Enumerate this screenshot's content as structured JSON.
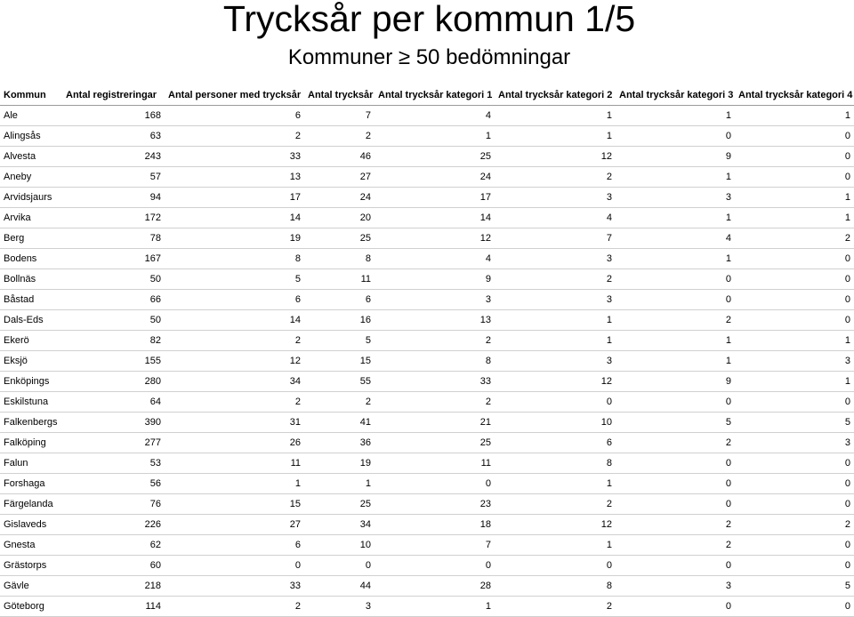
{
  "title": "Trycksår per kommun 1/5",
  "subtitle": "Kommuner ≥ 50 bedömningar",
  "table": {
    "headers": [
      "Kommun",
      "Antal registreringar",
      "Antal personer med trycksår",
      "Antal trycksår",
      "Antal trycksår kategori 1",
      "Antal trycksår kategori 2",
      "Antal trycksår kategori 3",
      "Antal trycksår kategori 4"
    ],
    "rows": [
      [
        "Ale",
        "168",
        "6",
        "7",
        "4",
        "1",
        "1",
        "1"
      ],
      [
        "Alingsås",
        "63",
        "2",
        "2",
        "1",
        "1",
        "0",
        "0"
      ],
      [
        "Alvesta",
        "243",
        "33",
        "46",
        "25",
        "12",
        "9",
        "0"
      ],
      [
        "Aneby",
        "57",
        "13",
        "27",
        "24",
        "2",
        "1",
        "0"
      ],
      [
        "Arvidsjaurs",
        "94",
        "17",
        "24",
        "17",
        "3",
        "3",
        "1"
      ],
      [
        "Arvika",
        "172",
        "14",
        "20",
        "14",
        "4",
        "1",
        "1"
      ],
      [
        "Berg",
        "78",
        "19",
        "25",
        "12",
        "7",
        "4",
        "2"
      ],
      [
        "Bodens",
        "167",
        "8",
        "8",
        "4",
        "3",
        "1",
        "0"
      ],
      [
        "Bollnäs",
        "50",
        "5",
        "11",
        "9",
        "2",
        "0",
        "0"
      ],
      [
        "Båstad",
        "66",
        "6",
        "6",
        "3",
        "3",
        "0",
        "0"
      ],
      [
        "Dals-Eds",
        "50",
        "14",
        "16",
        "13",
        "1",
        "2",
        "0"
      ],
      [
        "Ekerö",
        "82",
        "2",
        "5",
        "2",
        "1",
        "1",
        "1"
      ],
      [
        "Eksjö",
        "155",
        "12",
        "15",
        "8",
        "3",
        "1",
        "3"
      ],
      [
        "Enköpings",
        "280",
        "34",
        "55",
        "33",
        "12",
        "9",
        "1"
      ],
      [
        "Eskilstuna",
        "64",
        "2",
        "2",
        "2",
        "0",
        "0",
        "0"
      ],
      [
        "Falkenbergs",
        "390",
        "31",
        "41",
        "21",
        "10",
        "5",
        "5"
      ],
      [
        "Falköping",
        "277",
        "26",
        "36",
        "25",
        "6",
        "2",
        "3"
      ],
      [
        "Falun",
        "53",
        "11",
        "19",
        "11",
        "8",
        "0",
        "0"
      ],
      [
        "Forshaga",
        "56",
        "1",
        "1",
        "0",
        "1",
        "0",
        "0"
      ],
      [
        "Färgelanda",
        "76",
        "15",
        "25",
        "23",
        "2",
        "0",
        "0"
      ],
      [
        "Gislaveds",
        "226",
        "27",
        "34",
        "18",
        "12",
        "2",
        "2"
      ],
      [
        "Gnesta",
        "62",
        "6",
        "10",
        "7",
        "1",
        "2",
        "0"
      ],
      [
        "Grästorps",
        "60",
        "0",
        "0",
        "0",
        "0",
        "0",
        "0"
      ],
      [
        "Gävle",
        "218",
        "33",
        "44",
        "28",
        "8",
        "3",
        "5"
      ],
      [
        "Göteborg",
        "114",
        "2",
        "3",
        "1",
        "2",
        "0",
        "0"
      ]
    ]
  }
}
